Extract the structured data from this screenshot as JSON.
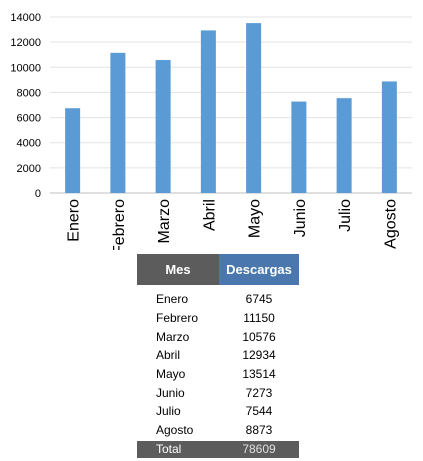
{
  "chart_data": {
    "type": "bar",
    "categories": [
      "Enero",
      "Febrero",
      "Marzo",
      "Abril",
      "Mayo",
      "Junio",
      "Julio",
      "Agosto"
    ],
    "series": [
      {
        "values": [
          6745,
          11150,
          10576,
          12934,
          13514,
          7273,
          7544,
          8873
        ]
      }
    ],
    "yticks": [
      "0",
      "2000",
      "4000",
      "6000",
      "8000",
      "10000",
      "12000",
      "14000"
    ],
    "ylim": [
      0,
      14000
    ],
    "grid": true,
    "bar_color": "#5b9bd5"
  },
  "table": {
    "headers": [
      "Mes",
      "Descargas"
    ],
    "rows": [
      [
        "Enero",
        "6745"
      ],
      [
        "Febrero",
        "11150"
      ],
      [
        "Marzo",
        "10576"
      ],
      [
        "Abril",
        "12934"
      ],
      [
        "Mayo",
        "13514"
      ],
      [
        "Junio",
        "7273"
      ],
      [
        "Julio",
        "7544"
      ],
      [
        "Agosto",
        "8873"
      ]
    ],
    "total": [
      "Total",
      "78609"
    ],
    "header_colors": [
      "#5c5c5c",
      "#4a77ad"
    ]
  }
}
